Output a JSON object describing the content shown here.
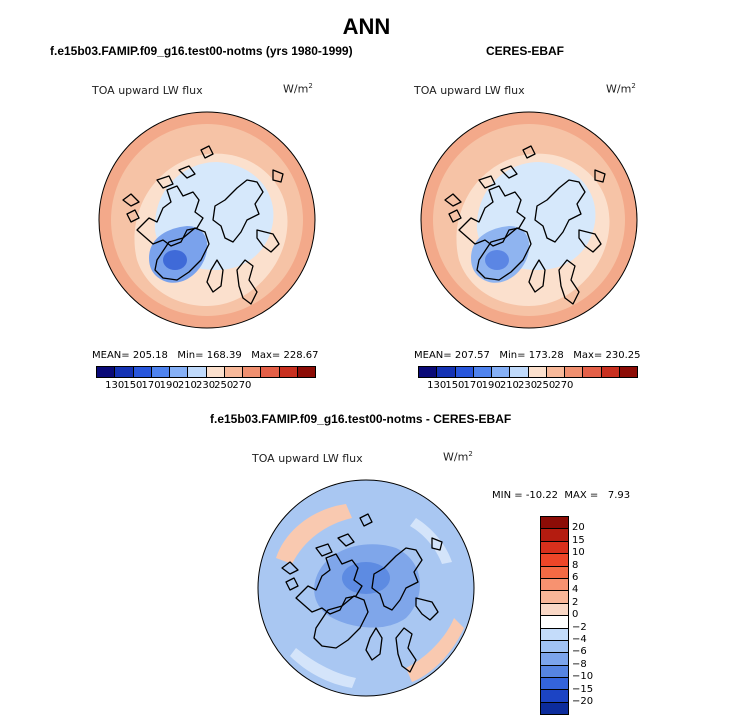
{
  "chart_data": {
    "type": "heatmap",
    "title": "ANN",
    "panels": [
      {
        "subtitle": "f.e15b03.FAMIP.f09_g16.test00-notms (yrs 1980-1999)",
        "variable": "TOA upward LW flux",
        "units": "W/m",
        "units_exp": "2",
        "stats": {
          "mean_label": "MEAN=",
          "mean": "205.18",
          "min_label": "Min=",
          "min": "168.39",
          "max_label": "Max=",
          "max": "228.67"
        },
        "colorbar": {
          "levels": [
            "130",
            "150",
            "170",
            "190",
            "210",
            "230",
            "250",
            "270"
          ],
          "colors": [
            "#0a0a78",
            "#1432b4",
            "#2856dc",
            "#4f83ee",
            "#86b0f6",
            "#c0dafb",
            "#fbe0cd",
            "#f8b99a",
            "#f09070",
            "#e46048",
            "#c83020",
            "#8c0c06"
          ]
        },
        "map_colors": {
          "ocean_low": "#f6c3a6",
          "ocean_high": "#f3a98a",
          "arctic": "#d6e8fb",
          "greenland": "#7aa2ec",
          "greenland_core": "#3f6ad8",
          "land_warm": "#fbe0cd"
        }
      },
      {
        "subtitle": "CERES-EBAF",
        "variable": "TOA upward LW flux",
        "units": "W/m",
        "units_exp": "2",
        "stats": {
          "mean_label": "MEAN=",
          "mean": "207.57",
          "min_label": "Min=",
          "min": "173.28",
          "max_label": "Max=",
          "max": "230.25"
        },
        "colorbar": {
          "levels": [
            "130",
            "150",
            "170",
            "190",
            "210",
            "230",
            "250",
            "270"
          ],
          "colors": [
            "#0a0a78",
            "#1432b4",
            "#2856dc",
            "#4f83ee",
            "#86b0f6",
            "#c0dafb",
            "#fbe0cd",
            "#f8b99a",
            "#f09070",
            "#e46048",
            "#c83020",
            "#8c0c06"
          ]
        },
        "map_colors": {
          "ocean_low": "#f6c3a6",
          "ocean_high": "#f3a98a",
          "arctic": "#d6e8fb",
          "greenland": "#8fb4f0",
          "greenland_core": "#5b86e4",
          "land_warm": "#fbe0cd"
        }
      },
      {
        "subtitle": "f.e15b03.FAMIP.f09_g16.test00-notms - CERES-EBAF",
        "variable": "TOA upward LW flux",
        "units": "W/m",
        "units_exp": "2",
        "stats": {
          "min_label": "MIN =",
          "min": "-10.22",
          "max_label": "MAX =",
          "max": "7.93"
        },
        "colorbar": {
          "levels": [
            "20",
            "15",
            "10",
            "8",
            "6",
            "4",
            "2",
            "0",
            "−2",
            "−4",
            "−6",
            "−8",
            "−10",
            "−15",
            "−20"
          ],
          "colors": [
            "#8c0c06",
            "#b41c10",
            "#d8301c",
            "#ee4628",
            "#f46a44",
            "#f79270",
            "#f9b698",
            "#fad8c6",
            "#ffffff",
            "#c4dcfa",
            "#a0c2f4",
            "#7ca4ec",
            "#5684e2",
            "#3464dc",
            "#1c44c4",
            "#0c2c9c"
          ]
        },
        "map_colors": {
          "base": "#a9c7f2",
          "deep": "#7fa6ea",
          "darkest": "#5d8be2",
          "warm": "#f9c9b0",
          "light": "#d4e4fa"
        }
      }
    ]
  }
}
